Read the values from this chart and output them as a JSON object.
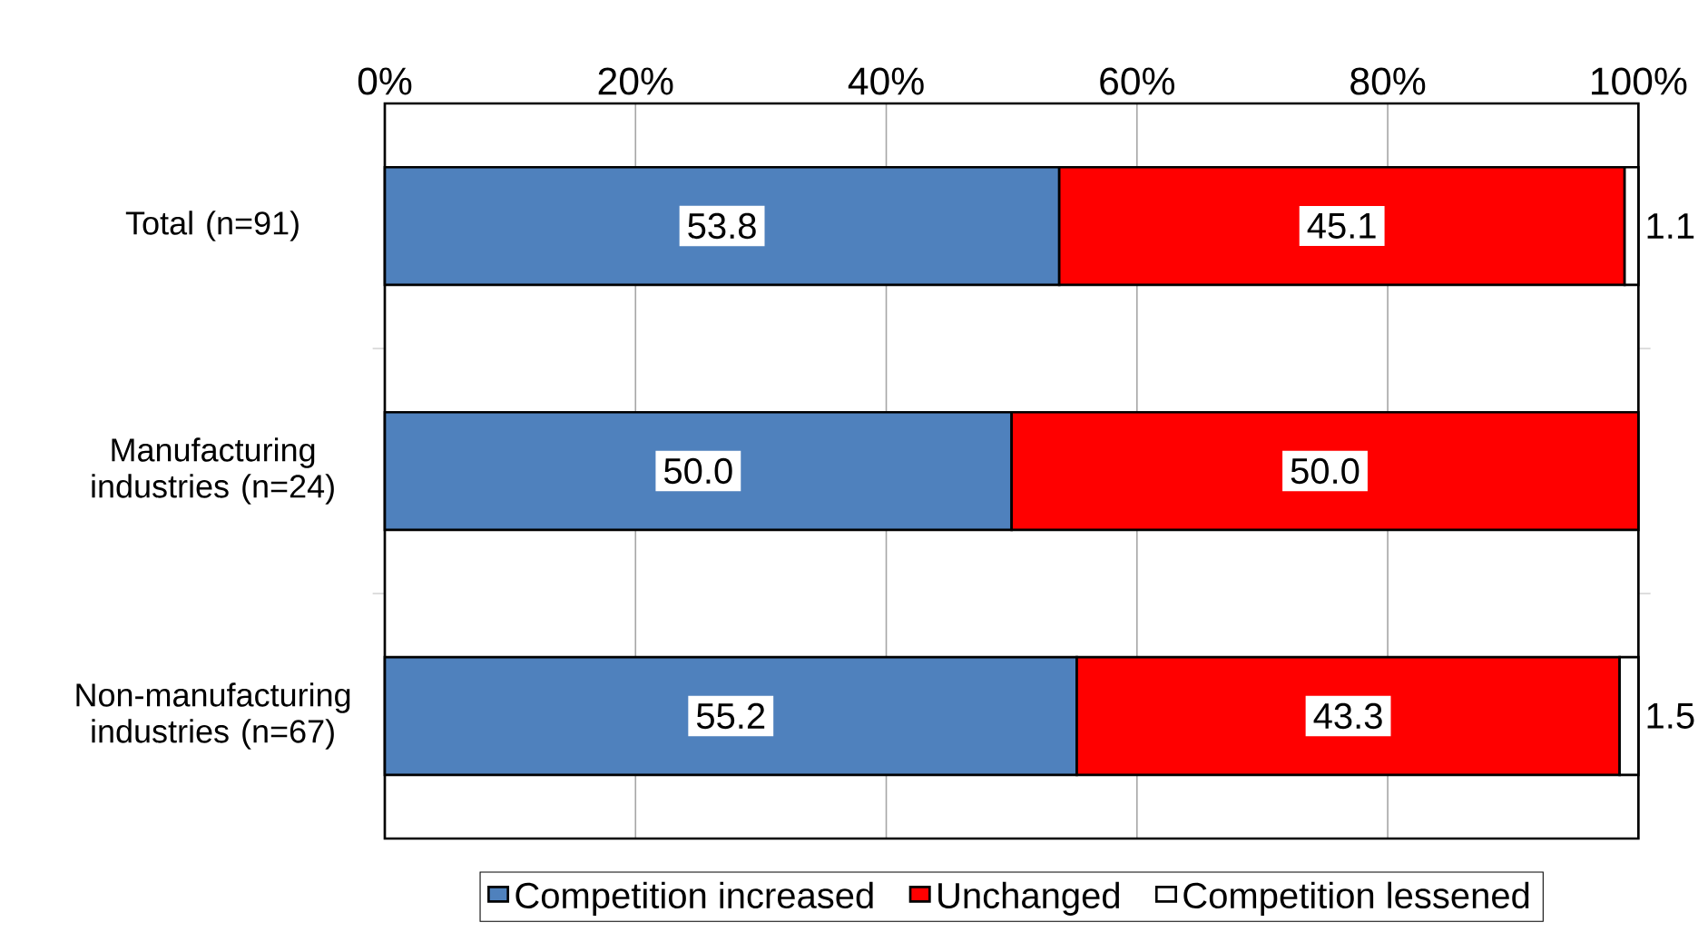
{
  "chart_data": {
    "type": "bar",
    "orientation": "horizontal",
    "stacked": true,
    "categories": [
      "Total (n=91)",
      "Manufacturing industries (n=24)",
      "Non-manufacturing industries (n=67)"
    ],
    "series": [
      {
        "name": "Competition increased",
        "color": "#4f81bd",
        "values": [
          53.8,
          50.0,
          55.2
        ],
        "value_labels": [
          "53.8",
          "50.0",
          "55.2"
        ]
      },
      {
        "name": "Unchanged",
        "color": "#ff0000",
        "values": [
          45.1,
          50.0,
          43.3
        ],
        "value_labels": [
          "45.1",
          "50.0",
          "43.3"
        ]
      },
      {
        "name": "Competition lessened",
        "color": "#ffffff",
        "values": [
          1.1,
          0,
          1.5
        ],
        "value_labels": [
          "1.1",
          null,
          "1.5"
        ]
      }
    ],
    "xlim": [
      0,
      100
    ],
    "xticks": [
      {
        "value": 0,
        "label": "0%"
      },
      {
        "value": 20,
        "label": "20%"
      },
      {
        "value": 40,
        "label": "40%"
      },
      {
        "value": 60,
        "label": "60%"
      },
      {
        "value": 80,
        "label": "80%"
      },
      {
        "value": 100,
        "label": "100%"
      }
    ],
    "grid": "x",
    "legend": "bottom"
  }
}
